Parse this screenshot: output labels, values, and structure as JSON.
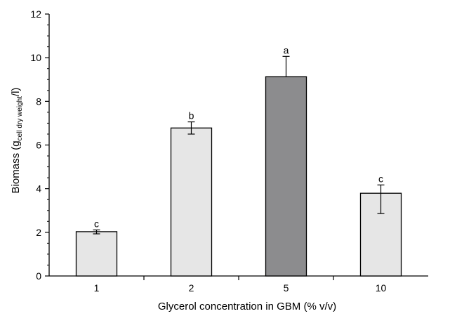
{
  "chart_data": {
    "type": "bar",
    "categories": [
      "1",
      "2",
      "5",
      "10"
    ],
    "values": [
      2.03,
      6.78,
      9.13,
      3.79
    ],
    "errors_lower": [
      0.1,
      0.28,
      0.0,
      0.93
    ],
    "errors_upper": [
      0.08,
      0.28,
      0.93,
      0.38
    ],
    "significance": [
      "c",
      "b",
      "a",
      "c"
    ],
    "bar_colors": [
      "#e6e6e6",
      "#e6e6e6",
      "#8c8c8e",
      "#e6e6e6"
    ],
    "ylim": [
      0,
      12
    ],
    "yticks": [
      "0",
      "2",
      "4",
      "6",
      "8",
      "10",
      "12"
    ],
    "xlabel": "Glycerol concentration in GBM (% v/v)",
    "ylabel": {
      "prefix": "Biomass (g",
      "subscript": "cell dry weight",
      "suffix": "/l)"
    },
    "grid": false,
    "legend": "none"
  }
}
